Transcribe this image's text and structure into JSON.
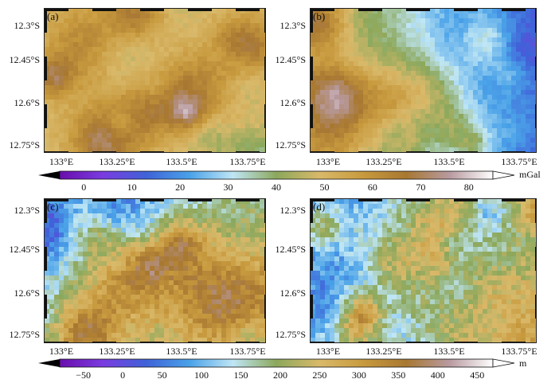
{
  "panels": [
    {
      "id": "a",
      "label": "(a)",
      "palette": "gravity",
      "lo": 0,
      "hi": 80,
      "seed": 3
    },
    {
      "id": "b",
      "label": "(b)",
      "palette": "gravity",
      "lo": 0,
      "hi": 80,
      "seed": 11
    },
    {
      "id": "c",
      "label": "(c)",
      "palette": "elev",
      "lo": -50,
      "hi": 450,
      "seed": 21
    },
    {
      "id": "d",
      "label": "(d)",
      "palette": "elev",
      "lo": -50,
      "hi": 450,
      "seed": 22
    }
  ],
  "y_ticks": [
    "12.3°S",
    "12.45°S",
    "12.6°S",
    "12.75°S"
  ],
  "x_ticks": [
    "133°E",
    "133.25°E",
    "133.5°E",
    "133.75°E"
  ],
  "colorbar_top": {
    "ticks": [
      "0",
      "10",
      "20",
      "30",
      "40",
      "50",
      "60",
      "70",
      "80"
    ],
    "unit": "mGal",
    "min": -5,
    "max": 85
  },
  "colorbar_bottom": {
    "ticks": [
      "−50",
      "0",
      "50",
      "100",
      "150",
      "200",
      "250",
      "300",
      "350",
      "400",
      "450"
    ],
    "unit": "m",
    "min": -80,
    "max": 470
  },
  "colors": {
    "gravity": [
      "#6a0dad",
      "#7a3ce0",
      "#3f63d8",
      "#4aa2e8",
      "#bfe6f5",
      "#8ca85c",
      "#d9b96a",
      "#c89a3e",
      "#a87832",
      "#b89aa0",
      "#ffffff"
    ],
    "elev": [
      "#6a0dad",
      "#7a3ce0",
      "#3f63d8",
      "#4aa2e8",
      "#bfe6f5",
      "#8ca85c",
      "#d9b96a",
      "#c89a3e",
      "#a87832",
      "#b89aa0",
      "#ffffff"
    ]
  }
}
